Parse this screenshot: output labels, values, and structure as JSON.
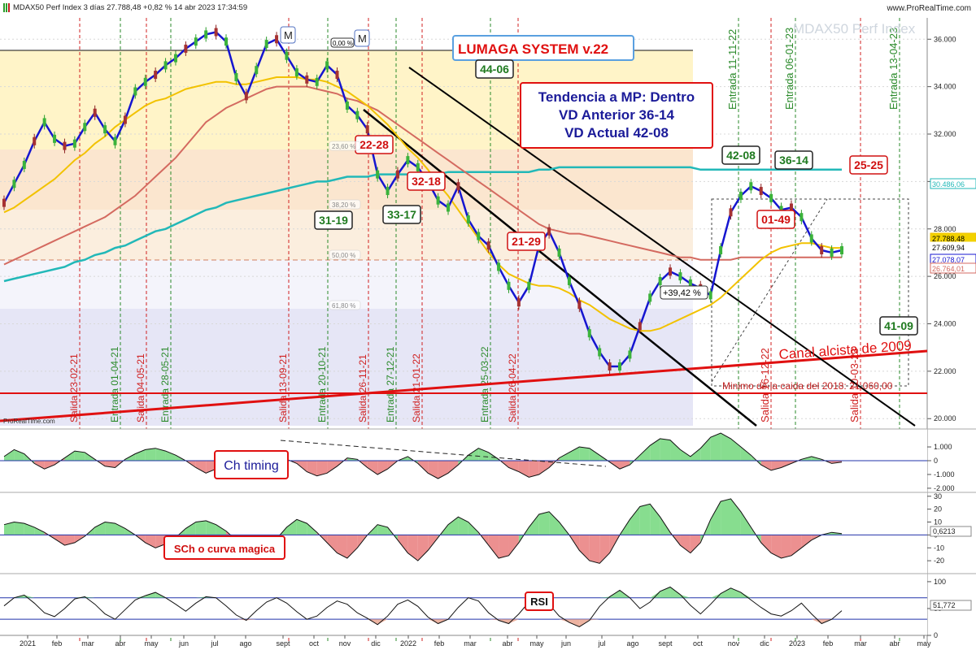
{
  "header": {
    "instrument_line": "MDAX50 Perf Index 3 días 27.788,48 +0,82 % 14 abr 2023 17:34:59",
    "site": "www.ProRealTime.com",
    "watermark": "MDAX50 Perf Index",
    "credit": "ProRealTime.com"
  },
  "colors": {
    "price_line": "#1515d0",
    "ma_fast": "#f2c200",
    "ma_mid": "#d46a60",
    "ma_slow": "#22b8b8",
    "channel_red": "#e01010",
    "entrada": "#2a8a2a",
    "salida": "#d02020",
    "zone_top": "#fff4c8",
    "zone_mid": "#fbe6cf",
    "zone_low": "#f4f4fb",
    "zone_bottom": "#e6e6f6",
    "hist_green": "#5fd16a",
    "hist_red": "#e56b6b"
  },
  "annotations": {
    "system_title": "LUMAGA SYSTEM v.22",
    "trend_line1": "Tendencia a MP: Dentro",
    "trend_line2": "VD Anterior 36-14",
    "trend_line3": "VD Actual 42-08",
    "canal": "Canal alcista de 2009",
    "minimo": "Minimo de la caida del 2018: 21.060,00",
    "pct_gain": "+39,42 %",
    "m_marker": "M",
    "zero_pct": "0,00 %",
    "fib_236": "23,60 %",
    "fib_382": "38,20 %",
    "fib_50": "50,00 %",
    "fib_618": "61,80 %",
    "ch_timing": "Ch timing",
    "sch": "SCh o curva magica",
    "rsi": "RSI"
  },
  "signal_boxes": [
    {
      "text": "44-06",
      "type": "green"
    },
    {
      "text": "22-28",
      "type": "red"
    },
    {
      "text": "32-18",
      "type": "red"
    },
    {
      "text": "31-19",
      "type": "black"
    },
    {
      "text": "33-17",
      "type": "black"
    },
    {
      "text": "21-29",
      "type": "red"
    },
    {
      "text": "42-08",
      "type": "green"
    },
    {
      "text": "36-14",
      "type": "green"
    },
    {
      "text": "25-25",
      "type": "red"
    },
    {
      "text": "01-49",
      "type": "red"
    },
    {
      "text": "41-09",
      "type": "green"
    }
  ],
  "vertical_signals": [
    {
      "text": "Salida 23-02-21",
      "type": "salida"
    },
    {
      "text": "Entrada 01-04-21",
      "type": "entrada"
    },
    {
      "text": "Salida 04-05-21",
      "type": "salida"
    },
    {
      "text": "Entrada 28-05-21",
      "type": "entrada"
    },
    {
      "text": "Salida 13-09-21",
      "type": "salida"
    },
    {
      "text": "Entrada 20-10-21",
      "type": "entrada"
    },
    {
      "text": "Salida 26-11-21",
      "type": "salida"
    },
    {
      "text": "Entrada 27-12-21",
      "type": "entrada"
    },
    {
      "text": "Salida 21-01-22",
      "type": "salida"
    },
    {
      "text": "Entrada 25-03-22",
      "type": "entrada"
    },
    {
      "text": "Salida 26-04-22",
      "type": "salida"
    },
    {
      "text": "Entrada 11-11-22",
      "type": "entrada"
    },
    {
      "text": "Salida 16-12-22",
      "type": "salida"
    },
    {
      "text": "Entrada 06-01-23",
      "type": "entrada"
    },
    {
      "text": "Salida 10-03-23",
      "type": "salida"
    },
    {
      "text": "Entrada 13-04-23",
      "type": "entrada"
    }
  ],
  "chart_data": [
    {
      "type": "line",
      "title": "MDAX50 Perf Index 3 días",
      "x_ticks": [
        "2021",
        "feb",
        "mar",
        "abr",
        "may",
        "jun",
        "jul",
        "ago",
        "sept",
        "oct",
        "nov",
        "dic",
        "2022",
        "feb",
        "mar",
        "abr",
        "may",
        "jun",
        "jul",
        "ago",
        "sept",
        "oct",
        "nov",
        "dic",
        "2023",
        "feb",
        "mar",
        "abr",
        "may"
      ],
      "y_ticks": [
        "36.000",
        "34.000",
        "32.000",
        "30.000",
        "28.000",
        "26.000",
        "24.000",
        "22.000",
        "20.000"
      ],
      "ylim": [
        19700,
        36900
      ],
      "price_labels": [
        "30.486,06",
        "27.788,48",
        "27.609,94",
        "27.078,07",
        "26.764,01"
      ],
      "x": [
        0,
        10,
        20,
        30,
        40,
        50,
        60,
        70,
        80,
        90,
        100,
        110,
        120,
        130,
        140,
        150,
        160,
        170,
        180,
        190,
        200,
        210,
        220,
        230,
        240,
        250,
        260,
        270,
        280,
        290,
        300,
        310,
        320,
        330,
        340,
        350,
        360,
        370,
        380,
        390,
        400,
        410,
        420,
        430,
        440,
        450,
        460,
        470,
        480,
        490,
        500,
        510,
        520,
        530,
        540,
        550,
        560,
        570,
        580,
        590,
        600,
        610,
        620,
        630,
        640,
        650,
        660,
        670,
        680,
        690,
        700,
        710,
        720,
        730,
        740,
        750,
        760,
        770,
        780,
        790,
        800,
        810,
        820,
        830
      ],
      "series": [
        {
          "values": [
            29100,
            29900,
            30700,
            31700,
            32500,
            31800,
            31500,
            31600,
            32300,
            32900,
            32200,
            31700,
            32600,
            33800,
            34200,
            34500,
            34900,
            35200,
            35600,
            35900,
            36200,
            36300,
            35900,
            34400,
            33600,
            34700,
            35800,
            36000,
            35300,
            34600,
            34300,
            34200,
            34900,
            34500,
            33200,
            32800,
            32200,
            30300,
            29600,
            30300,
            30900,
            30600,
            30000,
            29200,
            28900,
            29800,
            28400,
            27700,
            27300,
            26400,
            25600,
            24900,
            25600,
            27300,
            27900,
            27000,
            25800,
            24800,
            23600,
            22800,
            22200,
            22200,
            22700,
            23900,
            25100,
            25800,
            26200,
            26000,
            25700,
            25500,
            25200,
            27100,
            28700,
            29400,
            29800,
            29600,
            29300,
            28800,
            28900,
            28500,
            27600,
            27100,
            27000,
            27100
          ]
        },
        {
          "values": [
            28700,
            28900,
            29200,
            29500,
            29800,
            30100,
            30500,
            30900,
            31200,
            31600,
            31900,
            32300,
            32600,
            32900,
            33200,
            33400,
            33500,
            33700,
            33900,
            34000,
            34100,
            34200,
            34200,
            34100,
            34100,
            34200,
            34300,
            34400,
            34400,
            34400,
            34300,
            34300,
            34200,
            34000,
            33800,
            33500,
            33200,
            32800,
            32400,
            31900,
            31400,
            31000,
            30500,
            29900,
            29400,
            28800,
            28200,
            27600,
            27000,
            26500,
            26100,
            25900,
            25700,
            25600,
            25600,
            25500,
            25300,
            25000,
            24800,
            24500,
            24200,
            24000,
            23800,
            23700,
            23700,
            23800,
            24000,
            24200,
            24400,
            24600,
            24800,
            25100,
            25500,
            25900,
            26300,
            26700,
            27000,
            27200,
            27300,
            27400,
            27400,
            27300,
            27200,
            27200
          ]
        },
        {
          "values": [
            26500,
            26700,
            26900,
            27100,
            27300,
            27500,
            27700,
            27900,
            28100,
            28300,
            28500,
            28800,
            29100,
            29400,
            29800,
            30200,
            30600,
            31000,
            31500,
            32000,
            32500,
            32800,
            33100,
            33300,
            33500,
            33700,
            33900,
            34000,
            34000,
            34000,
            34000,
            33900,
            33800,
            33700,
            33500,
            33400,
            33200,
            33000,
            32700,
            32400,
            32100,
            31800,
            31500,
            31200,
            30900,
            30600,
            30300,
            30000,
            29700,
            29400,
            29100,
            28800,
            28500,
            28200,
            28000,
            27900,
            27800,
            27800,
            27700,
            27600,
            27500,
            27400,
            27300,
            27200,
            27100,
            27000,
            26900,
            26800,
            26800,
            26700,
            26700,
            26700,
            26700,
            26800,
            26800,
            26800,
            26800,
            26800,
            26800,
            26800,
            26800,
            26800,
            26800,
            26800
          ]
        },
        {
          "values": [
            25800,
            25900,
            26000,
            26100,
            26200,
            26300,
            26400,
            26600,
            26700,
            26900,
            27000,
            27200,
            27300,
            27500,
            27700,
            27900,
            28000,
            28200,
            28400,
            28600,
            28800,
            28900,
            29100,
            29200,
            29300,
            29400,
            29500,
            29600,
            29700,
            29800,
            29900,
            30000,
            30000,
            30100,
            30200,
            30200,
            30200,
            30300,
            30300,
            30300,
            30300,
            30300,
            30300,
            30300,
            30400,
            30400,
            30400,
            30400,
            30400,
            30400,
            30400,
            30400,
            30400,
            30500,
            30500,
            30600,
            30600,
            30600,
            30600,
            30600,
            30600,
            30600,
            30600,
            30600,
            30600,
            30600,
            30600,
            30600,
            30600,
            30500,
            30500,
            30500,
            30500,
            30500,
            30500,
            30500,
            30500,
            30500,
            30500,
            30500,
            30500,
            30500,
            30500,
            30500
          ]
        }
      ]
    },
    {
      "type": "area",
      "title": "Ch timing",
      "y_ticks": [
        "1.000",
        "0",
        "-1.000",
        "-2.000"
      ],
      "values": [
        0.3,
        0.8,
        0.5,
        -0.2,
        -0.6,
        -0.3,
        0.2,
        0.7,
        0.6,
        0.1,
        -0.4,
        -0.5,
        0.1,
        0.5,
        0.8,
        0.9,
        0.7,
        0.4,
        0.0,
        -0.5,
        -0.9,
        -0.6,
        -0.1,
        0.4,
        0.2,
        -0.3,
        -0.7,
        -0.4,
        0.1,
        -0.2,
        -0.8,
        -1.1,
        -0.9,
        -0.4,
        0.2,
        0.1,
        -0.5,
        -1.0,
        -0.6,
        0.0,
        0.3,
        -0.2,
        -0.9,
        -1.3,
        -0.9,
        -0.3,
        0.4,
        0.9,
        0.6,
        0.1,
        -0.5,
        -0.8,
        -1.2,
        -1.0,
        -0.5,
        0.2,
        0.6,
        1.0,
        0.9,
        0.4,
        -0.1,
        -0.6,
        -0.3,
        0.4,
        1.1,
        1.6,
        1.5,
        0.8,
        0.3,
        0.9,
        1.7,
        2.0,
        1.6,
        1.0,
        0.4,
        -0.3,
        -0.7,
        -0.5,
        -0.2,
        0.1,
        0.3,
        0.1,
        -0.2,
        -0.1
      ]
    },
    {
      "type": "area",
      "title": "SCh o curva magica",
      "y_ticks": [
        "30",
        "20",
        "10",
        "0",
        "-10",
        "-20"
      ],
      "price_label": "0,6213",
      "values": [
        8,
        10,
        9,
        6,
        2,
        -3,
        -8,
        -6,
        -1,
        6,
        10,
        9,
        5,
        0,
        -6,
        -10,
        -7,
        -2,
        5,
        10,
        11,
        8,
        3,
        -4,
        -12,
        -16,
        -11,
        -3,
        6,
        12,
        9,
        2,
        -6,
        -14,
        -18,
        -10,
        0,
        8,
        6,
        -4,
        -14,
        -20,
        -12,
        -2,
        8,
        14,
        10,
        2,
        -8,
        -18,
        -16,
        -6,
        6,
        16,
        18,
        10,
        0,
        -12,
        -20,
        -22,
        -14,
        0,
        12,
        22,
        24,
        14,
        2,
        -8,
        -14,
        -6,
        12,
        26,
        28,
        18,
        6,
        -6,
        -14,
        -18,
        -16,
        -10,
        -4,
        0,
        2,
        1
      ]
    },
    {
      "type": "line",
      "title": "RSI",
      "y_ticks": [
        "100",
        "50",
        "0"
      ],
      "price_label": "51,772",
      "values": [
        55,
        70,
        75,
        60,
        42,
        35,
        50,
        68,
        72,
        58,
        40,
        30,
        48,
        66,
        74,
        80,
        70,
        58,
        45,
        60,
        72,
        70,
        55,
        38,
        28,
        46,
        62,
        70,
        60,
        44,
        30,
        36,
        52,
        64,
        58,
        42,
        32,
        20,
        36,
        58,
        66,
        54,
        34,
        22,
        30,
        52,
        70,
        64,
        42,
        28,
        22,
        40,
        62,
        72,
        58,
        36,
        24,
        16,
        28,
        54,
        72,
        84,
        70,
        50,
        62,
        82,
        90,
        76,
        56,
        40,
        58,
        78,
        88,
        80,
        66,
        52,
        40,
        36,
        46,
        60,
        40,
        22,
        30,
        46
      ]
    }
  ]
}
